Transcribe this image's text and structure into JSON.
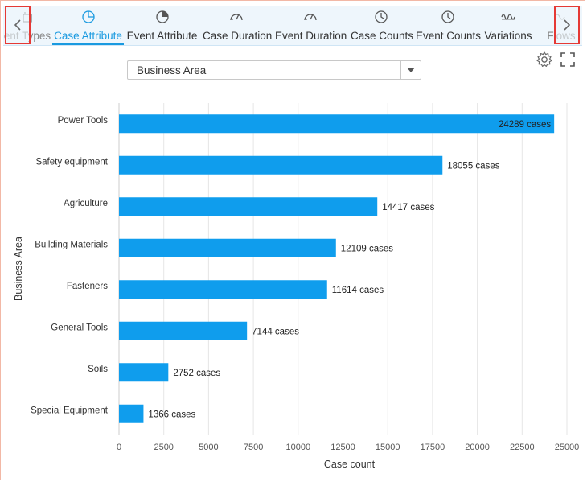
{
  "tabs": [
    {
      "label": "ent Types",
      "icon": "event-types-icon",
      "active": false
    },
    {
      "label": "Case Attribute",
      "icon": "pie-chart-icon",
      "active": true
    },
    {
      "label": "Event Attribute",
      "icon": "pie-chart-alt-icon",
      "active": false
    },
    {
      "label": "Case Duration",
      "icon": "gauge-icon",
      "active": false
    },
    {
      "label": "Event Duration",
      "icon": "gauge-icon",
      "active": false
    },
    {
      "label": "Case Counts",
      "icon": "clock-icon",
      "active": false
    },
    {
      "label": "Event Counts",
      "icon": "clock-icon",
      "active": false
    },
    {
      "label": "Variations",
      "icon": "wave-icon",
      "active": false
    },
    {
      "label": "Flows",
      "icon": "flows-icon",
      "active": false
    }
  ],
  "nav": {
    "prev_icon": "chevron-left-icon",
    "next_icon": "chevron-right-icon"
  },
  "attribute_select": {
    "value": "Business Area"
  },
  "toolbar": {
    "settings_icon": "gear-icon",
    "fullscreen_icon": "fullscreen-icon"
  },
  "colors": {
    "accent": "#1a9ae0",
    "bar": "#0f9ded",
    "highlight": "#e53935"
  },
  "chart_data": {
    "type": "bar",
    "orientation": "horizontal",
    "categories": [
      "Power Tools",
      "Safety equipment",
      "Agriculture",
      "Building Materials",
      "Fasteners",
      "General Tools",
      "Soils",
      "Special Equipment"
    ],
    "values": [
      24289,
      18055,
      14417,
      12109,
      11614,
      7144,
      2752,
      1366
    ],
    "value_labels": [
      "24289 cases",
      "18055 cases",
      "14417 cases",
      "12109 cases",
      "11614 cases",
      "7144 cases",
      "2752 cases",
      "1366 cases"
    ],
    "xlabel": "Case count",
    "ylabel": "Business Area",
    "xlim": [
      0,
      25000
    ],
    "xticks": [
      0,
      2500,
      5000,
      7500,
      10000,
      12500,
      15000,
      17500,
      20000,
      22500,
      25000
    ],
    "grid": true
  }
}
